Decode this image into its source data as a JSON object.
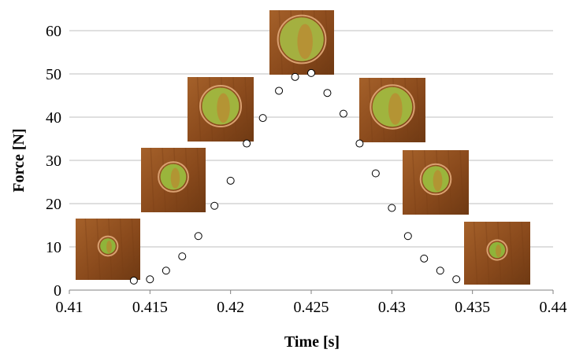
{
  "chart_data": {
    "type": "scatter",
    "title": "",
    "xlabel": "Time [s]",
    "ylabel": "Force [N]",
    "xlim": [
      0.41,
      0.44
    ],
    "ylim": [
      0,
      60
    ],
    "x_ticks": [
      "0.41",
      "0.415",
      "0.42",
      "0.425",
      "0.43",
      "0.435",
      "0.44"
    ],
    "y_ticks": [
      "0",
      "10",
      "20",
      "30",
      "40",
      "50",
      "60"
    ],
    "grid": "horizontal",
    "marker": "open-circle",
    "series": [
      {
        "x": [
          0.414,
          0.415,
          0.416,
          0.417,
          0.418,
          0.419,
          0.42,
          0.421,
          0.422,
          0.423,
          0.424,
          0.425,
          0.426,
          0.427,
          0.428,
          0.429,
          0.43,
          0.431,
          0.432,
          0.433,
          0.434
        ],
        "y": [
          2.2,
          2.5,
          4.5,
          7.8,
          12.5,
          19.5,
          25.3,
          33.9,
          39.8,
          46.1,
          49.3,
          50.2,
          45.6,
          40.8,
          33.9,
          27.0,
          19.0,
          12.5,
          7.3,
          4.5,
          2.5
        ]
      }
    ],
    "insets": [
      {
        "name": "droplet-photo-1",
        "bg": "#8a4a1c",
        "blob": "#8fb43a",
        "blob_size": 0.12
      },
      {
        "name": "droplet-photo-2",
        "bg": "#8a4a1c",
        "blob": "#9ab53c",
        "blob_size": 0.2
      },
      {
        "name": "droplet-photo-3",
        "bg": "#8a4a1c",
        "blob": "#a0b43e",
        "blob_size": 0.28
      },
      {
        "name": "droplet-photo-4",
        "bg": "#8a4a1c",
        "blob": "#a4b040",
        "blob_size": 0.34
      },
      {
        "name": "droplet-photo-5",
        "bg": "#8a4a1c",
        "blob": "#a0b43e",
        "blob_size": 0.3
      },
      {
        "name": "droplet-photo-6",
        "bg": "#8a4a1c",
        "blob": "#9ab53c",
        "blob_size": 0.2
      },
      {
        "name": "droplet-photo-7",
        "bg": "#8a4a1c",
        "blob": "#8fb43a",
        "blob_size": 0.12
      }
    ],
    "colors": {
      "grid": "#bfbfbf",
      "axis": "#808080",
      "marker_stroke": "#000000",
      "marker_fill": "#ffffff"
    }
  }
}
